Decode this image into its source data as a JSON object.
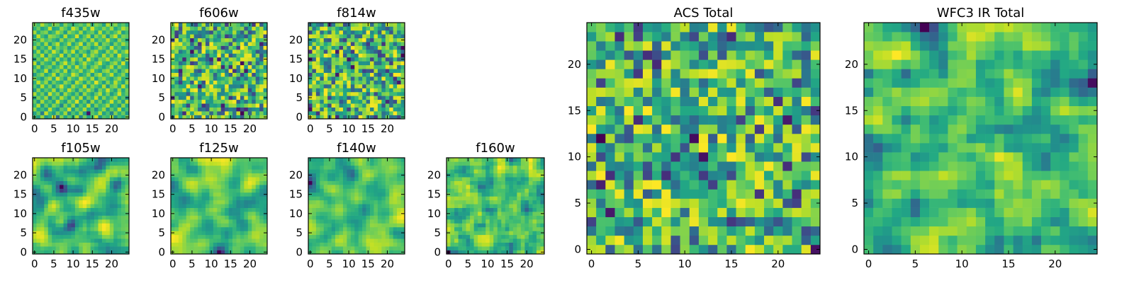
{
  "chart_data": [
    {
      "type": "heatmap",
      "title": "f435w",
      "grid_size": 25,
      "xlim": [
        0,
        24
      ],
      "ylim": [
        0,
        24
      ],
      "xticks": [
        "0",
        "5",
        "10",
        "15",
        "20"
      ],
      "yticks": [
        "0",
        "5",
        "10",
        "15",
        "20"
      ],
      "colormap": "viridis",
      "values": [
        [
          0.71,
          0.56,
          0.84,
          0.53,
          0.64,
          0.95,
          0.34,
          0.81,
          0.59,
          0.74,
          0.62,
          0.88,
          0.45,
          0.77,
          0.58,
          0.69,
          0.92,
          0.51,
          0.73,
          0.66,
          0.85,
          0.49,
          0.7,
          0.61,
          0.8
        ],
        [
          0.58,
          0.76,
          0.42,
          0.91,
          0.67,
          0.55,
          0.79,
          0.63,
          0.86,
          0.48,
          0.72,
          0.6,
          0.83,
          0.54,
          0.05,
          0.74,
          0.65,
          0.88,
          0.57,
          0.71,
          0.44,
          0.81,
          0.62,
          0.77,
          0.53
        ],
        [
          0.83,
          0.61,
          0.7,
          0.57,
          0.89,
          0.64,
          0.52,
          0.75,
          0.68,
          0.93,
          0.56,
          0.78,
          0.66,
          0.87,
          0.59,
          0.73,
          0.48,
          0.69,
          0.84,
          0.55,
          0.76,
          0.63,
          0.9,
          0.58,
          0.71
        ],
        [
          0.66,
          0.88,
          0.55,
          0.77,
          0.6,
          0.82,
          0.71,
          0.46,
          0.79,
          0.62,
          0.85,
          0.53,
          0.74,
          0.63,
          0.91,
          0.57,
          0.8,
          0.65,
          0.72,
          0.87,
          0.59,
          0.68,
          0.54,
          0.83,
          0.61
        ],
        [
          0.75,
          0.52,
          0.86,
          0.64,
          0.73,
          0.58,
          0.9,
          0.67,
          0.55,
          0.81,
          0.69,
          0.94,
          0.61,
          0.76,
          0.5,
          0.85,
          0.62,
          0.78,
          0.56,
          0.7,
          0.92,
          0.64,
          0.79,
          0.57,
          0.88
        ],
        [
          0.6,
          0.79,
          0.67,
          0.85,
          0.51,
          0.76,
          0.63,
          0.88,
          0.72,
          0.58,
          0.83,
          0.66,
          0.89,
          0.54,
          0.78,
          0.65,
          0.91,
          0.59,
          0.81,
          0.63,
          0.74,
          0.86,
          0.6,
          0.73,
          0.52
        ],
        [
          0.87,
          0.64,
          0.78,
          0.56,
          0.92,
          0.69,
          0.81,
          0.54,
          0.85,
          0.71,
          0.6,
          0.77,
          0.52,
          0.84,
          0.68,
          0.57,
          0.75,
          0.88,
          0.62,
          0.79,
          0.55,
          0.7,
          0.93,
          0.66,
          0.76
        ],
        [
          0.54,
          0.82,
          0.61,
          0.74,
          0.66,
          0.87,
          0.58,
          0.79,
          0.63,
          0.9,
          0.74,
          0.56,
          0.81,
          0.69,
          0.87,
          0.73,
          0.53,
          0.8,
          0.67,
          0.92,
          0.71,
          0.58,
          0.84,
          0.61,
          0.78
        ],
        [
          0.72,
          0.57,
          0.89,
          0.63,
          0.8,
          0.55,
          0.75,
          0.93,
          0.68,
          0.59,
          0.86,
          0.71,
          0.64,
          0.9,
          0.57,
          0.82,
          0.69,
          0.61,
          0.88,
          0.54,
          0.77,
          0.83,
          0.62,
          0.91,
          0.65
        ],
        [
          0.63,
          0.9,
          0.7,
          0.84,
          0.58,
          0.78,
          0.66,
          0.61,
          0.82,
          0.73,
          0.55,
          0.88,
          0.76,
          0.6,
          0.79,
          0.67,
          0.95,
          0.72,
          0.56,
          0.81,
          0.64,
          0.89,
          0.7,
          0.57,
          0.83
        ],
        [
          0.81,
          0.66,
          0.55,
          0.77,
          0.86,
          0.62,
          0.93,
          0.74,
          0.57,
          0.85,
          0.69,
          0.63,
          0.91,
          0.78,
          0.65,
          0.87,
          0.59,
          0.76,
          0.84,
          0.68,
          0.58,
          0.75,
          0.86,
          0.63,
          0.71
        ],
        [
          0.56,
          0.74,
          0.83,
          0.6,
          0.69,
          0.89,
          0.57,
          0.8,
          0.71,
          0.64,
          0.92,
          0.79,
          0.58,
          0.67,
          0.84,
          0.55,
          0.78,
          0.88,
          0.63,
          0.73,
          0.9,
          0.61,
          0.69,
          0.82,
          0.59
        ],
        [
          0.78,
          0.61,
          0.68,
          0.91,
          0.54,
          0.73,
          0.82,
          0.65,
          0.88,
          0.56,
          0.76,
          0.7,
          0.85,
          0.62,
          0.73,
          0.9,
          0.66,
          0.58,
          0.79,
          0.86,
          0.65,
          0.77,
          0.55,
          0.74,
          0.87
        ],
        [
          0.65,
          0.85,
          0.57,
          0.72,
          0.79,
          0.61,
          0.7,
          0.87,
          0.6,
          0.83,
          0.64,
          0.9,
          0.67,
          0.81,
          0.59,
          0.76,
          0.84,
          0.69,
          0.57,
          0.72,
          0.88,
          0.6,
          0.81,
          0.68,
          0.62
        ],
        [
          0.89,
          0.53,
          0.79,
          0.66,
          0.62,
          0.84,
          0.59,
          0.76,
          0.92,
          0.67,
          0.8,
          0.55,
          0.73,
          0.88,
          0.7,
          0.62,
          0.77,
          0.91,
          0.66,
          0.59,
          0.76,
          0.85,
          0.64,
          0.93,
          0.57
        ],
        [
          0.59,
          0.77,
          0.64,
          0.88,
          0.73,
          0.56,
          0.86,
          0.63,
          0.75,
          0.54,
          0.87,
          0.68,
          0.82,
          0.6,
          0.93,
          0.71,
          0.56,
          0.8,
          0.74,
          0.89,
          0.62,
          0.71,
          0.78,
          0.55,
          0.84
        ],
        [
          0.76,
          0.68,
          0.9,
          0.55,
          0.82,
          0.71,
          0.64,
          0.91,
          0.58,
          0.8,
          0.62,
          0.76,
          0.57,
          0.89,
          0.66,
          0.84,
          0.73,
          0.61,
          0.87,
          0.67,
          0.81,
          0.58,
          0.92,
          0.69,
          0.72
        ],
        [
          0.62,
          0.86,
          0.59,
          0.79,
          0.65,
          0.92,
          0.74,
          0.57,
          0.84,
          0.69,
          0.91,
          0.6,
          0.78,
          0.71,
          0.55,
          0.79,
          0.88,
          0.64,
          0.58,
          0.83,
          0.7,
          0.87,
          0.63,
          0.76,
          0.9
        ],
        [
          0.84,
          0.58,
          0.73,
          0.63,
          0.88,
          0.6,
          0.8,
          0.69,
          0.77,
          0.56,
          0.72,
          0.86,
          0.65,
          0.83,
          0.76,
          0.58,
          0.68,
          0.85,
          0.73,
          0.61,
          0.92,
          0.66,
          0.75,
          0.59,
          0.67
        ],
        [
          0.67,
          0.79,
          0.62,
          0.86,
          0.57,
          0.75,
          0.89,
          0.61,
          0.7,
          0.88,
          0.59,
          0.74,
          0.92,
          0.56,
          0.81,
          0.69,
          0.9,
          0.57,
          0.79,
          0.74,
          0.56,
          0.8,
          0.68,
          0.86,
          0.73
        ],
        [
          0.73,
          0.64,
          0.85,
          0.7,
          0.77,
          0.66,
          0.56,
          0.83,
          0.64,
          0.75,
          0.82,
          0.58,
          0.69,
          0.79,
          0.62,
          0.87,
          0.63,
          0.75,
          0.68,
          0.9,
          0.67,
          0.59,
          0.84,
          0.72,
          0.61
        ],
        [
          0.57,
          0.9,
          0.69,
          0.58,
          0.84,
          0.79,
          0.72,
          0.6,
          0.89,
          0.62,
          0.67,
          0.93,
          0.6,
          0.74,
          0.88,
          0.56,
          0.82,
          0.7,
          0.86,
          0.55,
          0.78,
          0.91,
          0.63,
          0.8,
          0.75
        ],
        [
          0.86,
          0.62,
          0.76,
          0.81,
          0.59,
          0.68,
          0.87,
          0.76,
          0.55,
          0.83,
          0.74,
          0.65,
          0.86,
          0.61,
          0.72,
          0.77,
          0.59,
          0.89,
          0.62,
          0.76,
          0.64,
          0.73,
          0.87,
          0.57,
          0.69
        ],
        [
          0.64,
          0.77,
          0.58,
          0.67,
          0.91,
          0.57,
          0.63,
          0.84,
          0.73,
          0.6,
          0.92,
          0.79,
          0.56,
          0.84,
          0.65,
          0.93,
          0.71,
          0.66,
          0.81,
          0.7,
          0.85,
          0.6,
          0.71,
          0.88,
          0.78
        ],
        [
          0.79,
          0.69,
          0.88,
          0.74,
          0.66,
          0.82,
          0.78,
          0.59,
          0.81,
          0.7,
          0.64,
          0.71,
          0.77,
          0.68,
          0.86,
          0.63,
          0.8,
          0.74,
          0.57,
          0.88,
          0.73,
          0.82,
          0.66,
          0.74,
          0.63
        ]
      ]
    },
    {
      "type": "heatmap",
      "title": "f606w",
      "grid_size": 25,
      "xlim": [
        0,
        24
      ],
      "ylim": [
        0,
        24
      ],
      "xticks": [
        "0",
        "5",
        "10",
        "15",
        "20"
      ],
      "yticks": [
        "0",
        "5",
        "10",
        "15",
        "20"
      ],
      "colormap": "viridis",
      "seed": 2,
      "smooth": 0
    },
    {
      "type": "heatmap",
      "title": "f814w",
      "grid_size": 25,
      "xlim": [
        0,
        24
      ],
      "ylim": [
        0,
        24
      ],
      "xticks": [
        "0",
        "5",
        "10",
        "15",
        "20"
      ],
      "yticks": [
        "0",
        "5",
        "10",
        "15",
        "20"
      ],
      "colormap": "viridis",
      "seed": 3,
      "smooth": 0
    },
    {
      "type": "heatmap",
      "title": "f105w",
      "grid_size": 25,
      "xlim": [
        0,
        24
      ],
      "ylim": [
        0,
        24
      ],
      "xticks": [
        "0",
        "5",
        "10",
        "15",
        "20"
      ],
      "yticks": [
        "0",
        "5",
        "10",
        "15",
        "20"
      ],
      "colormap": "viridis",
      "seed": 4,
      "smooth": 2
    },
    {
      "type": "heatmap",
      "title": "f125w",
      "grid_size": 25,
      "xlim": [
        0,
        24
      ],
      "ylim": [
        0,
        24
      ],
      "xticks": [
        "0",
        "5",
        "10",
        "15",
        "20"
      ],
      "yticks": [
        "0",
        "5",
        "10",
        "15",
        "20"
      ],
      "colormap": "viridis",
      "seed": 5,
      "smooth": 2
    },
    {
      "type": "heatmap",
      "title": "f140w",
      "grid_size": 25,
      "xlim": [
        0,
        24
      ],
      "ylim": [
        0,
        24
      ],
      "xticks": [
        "0",
        "5",
        "10",
        "15",
        "20"
      ],
      "yticks": [
        "0",
        "5",
        "10",
        "15",
        "20"
      ],
      "colormap": "viridis",
      "seed": 6,
      "smooth": 2
    },
    {
      "type": "heatmap",
      "title": "f160w",
      "grid_size": 25,
      "xlim": [
        0,
        24
      ],
      "ylim": [
        0,
        24
      ],
      "xticks": [
        "0",
        "5",
        "10",
        "15",
        "20"
      ],
      "yticks": [
        "0",
        "5",
        "10",
        "15",
        "20"
      ],
      "colormap": "viridis",
      "seed": 7,
      "smooth": 1
    },
    {
      "type": "heatmap",
      "title": "ACS Total",
      "grid_size": 25,
      "xlim": [
        0,
        24
      ],
      "ylim": [
        0,
        24
      ],
      "xticks": [
        "0",
        "5",
        "10",
        "15",
        "20"
      ],
      "yticks": [
        "0",
        "5",
        "10",
        "15",
        "20"
      ],
      "colormap": "viridis",
      "seed": 8,
      "smooth": 0
    },
    {
      "type": "heatmap",
      "title": "WFC3 IR Total",
      "grid_size": 25,
      "xlim": [
        0,
        24
      ],
      "ylim": [
        0,
        24
      ],
      "xticks": [
        "0",
        "5",
        "10",
        "15",
        "20"
      ],
      "yticks": [
        "0",
        "5",
        "10",
        "15",
        "20"
      ],
      "colormap": "viridis",
      "seed": 9,
      "smooth": 1
    }
  ]
}
